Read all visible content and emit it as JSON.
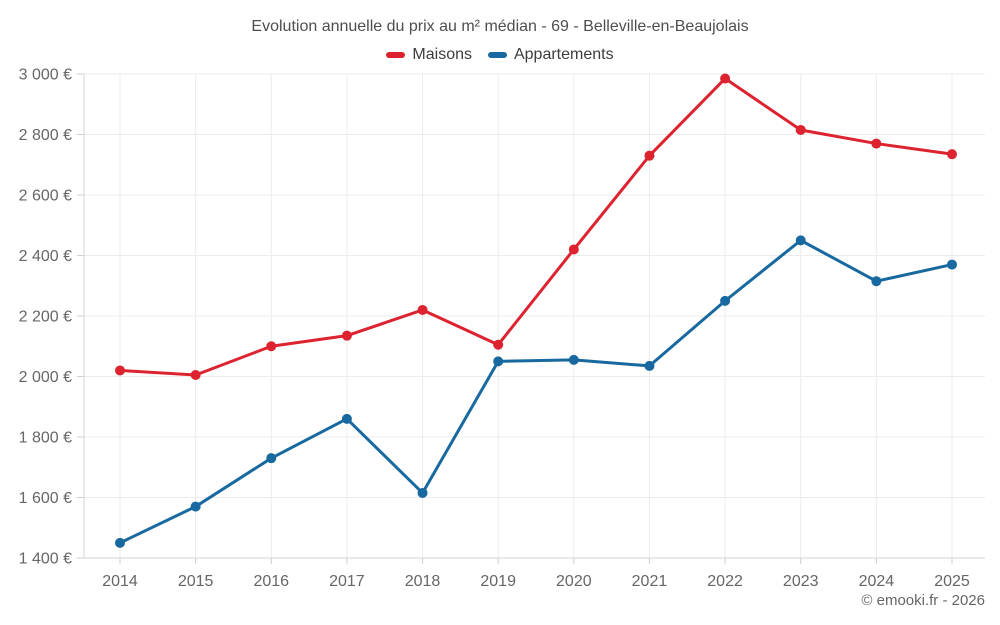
{
  "title": "Evolution annuelle du prix au m² médian - 69 - Belleville-en-Beaujolais",
  "footer": "© emooki.fr - 2026",
  "legend": [
    {
      "label": "Maisons",
      "color": "#dd232f"
    },
    {
      "label": "Appartements",
      "color": "#17699f"
    }
  ],
  "colors": {
    "maisons": "#dd232f",
    "appartements": "#17699f",
    "grid": "#ececec",
    "axis": "#d6d6d6",
    "tick": "#cfcfcf",
    "tick_label": "#666666",
    "title_text": "#4e4e4e"
  },
  "chart_data": {
    "type": "line",
    "title": "Evolution annuelle du prix au m² médian - 69 - Belleville-en-Beaujolais",
    "categories": [
      "2014",
      "2015",
      "2016",
      "2017",
      "2018",
      "2019",
      "2020",
      "2021",
      "2022",
      "2023",
      "2024",
      "2025"
    ],
    "series": [
      {
        "name": "Maisons",
        "color": "#dd232f",
        "values": [
          2020,
          2005,
          2100,
          2135,
          2220,
          2105,
          2420,
          2730,
          2985,
          2815,
          2770,
          2735
        ]
      },
      {
        "name": "Appartements",
        "color": "#17699f",
        "values": [
          1450,
          1570,
          1730,
          1860,
          1615,
          2050,
          2055,
          2035,
          2250,
          2450,
          2315,
          2370
        ]
      }
    ],
    "xlabel": "",
    "ylabel": "",
    "ylim": [
      1400,
      3000
    ],
    "yticks": [
      1400,
      1600,
      1800,
      2000,
      2200,
      2400,
      2600,
      2800,
      3000
    ],
    "ytick_labels": [
      "1 400 €",
      "1 600 €",
      "1 800 €",
      "2 000 €",
      "2 200 €",
      "2 400 €",
      "2 600 €",
      "2 800 €",
      "3 000 €"
    ],
    "unit": "€",
    "grid": true,
    "legend_position": "top"
  }
}
